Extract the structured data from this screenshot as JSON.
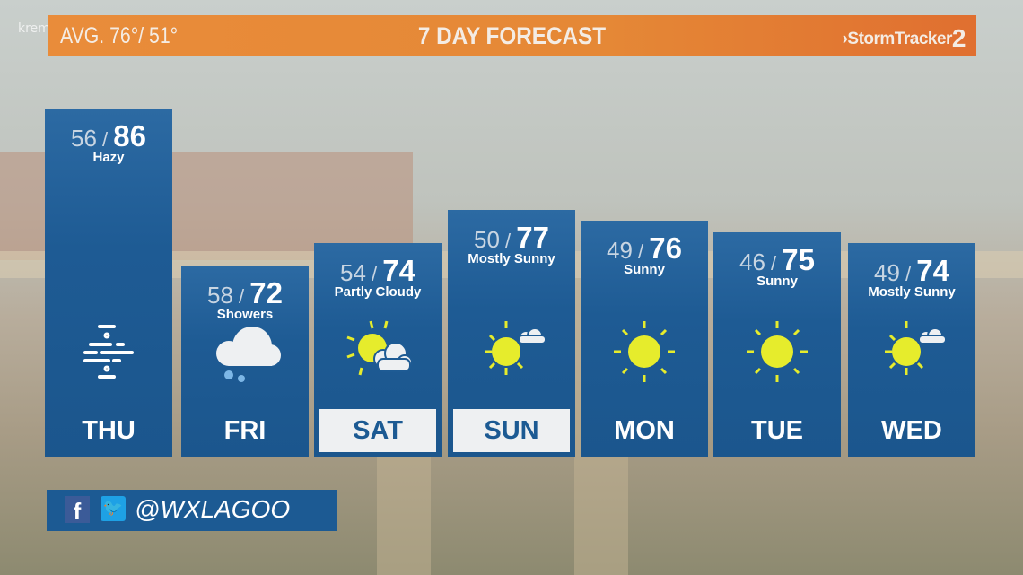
{
  "watermark": "krem.com",
  "header": {
    "avg": "AVG.  76°/ 51°",
    "title": "7 DAY FORECAST",
    "logo_prefix": "›StormTracker",
    "logo_num": "2"
  },
  "days": [
    {
      "day": "THU",
      "low": "56",
      "high": "86",
      "cond": "Hazy",
      "icon": "haze-icon",
      "highlight": false
    },
    {
      "day": "FRI",
      "low": "58",
      "high": "72",
      "cond": "Showers",
      "icon": "rain-cloud-icon",
      "highlight": false
    },
    {
      "day": "SAT",
      "low": "54",
      "high": "74",
      "cond": "Partly Cloudy",
      "icon": "partly-cloudy-icon",
      "highlight": true
    },
    {
      "day": "SUN",
      "low": "50",
      "high": "77",
      "cond": "Mostly Sunny",
      "icon": "mostly-sunny-icon",
      "highlight": true
    },
    {
      "day": "MON",
      "low": "49",
      "high": "76",
      "cond": "Sunny",
      "icon": "sun-icon",
      "highlight": false
    },
    {
      "day": "TUE",
      "low": "46",
      "high": "75",
      "cond": "Sunny",
      "icon": "sun-icon",
      "highlight": false
    },
    {
      "day": "WED",
      "low": "49",
      "high": "74",
      "cond": "Mostly Sunny",
      "icon": "mostly-sunny-icon",
      "highlight": false
    }
  ],
  "social": {
    "facebook": "f",
    "handle": "@WXLAGOO"
  },
  "colors": {
    "header": "#e58836",
    "card": "#1e5b94",
    "sun": "#e6ec2c",
    "highlight": "#eef0f2"
  }
}
